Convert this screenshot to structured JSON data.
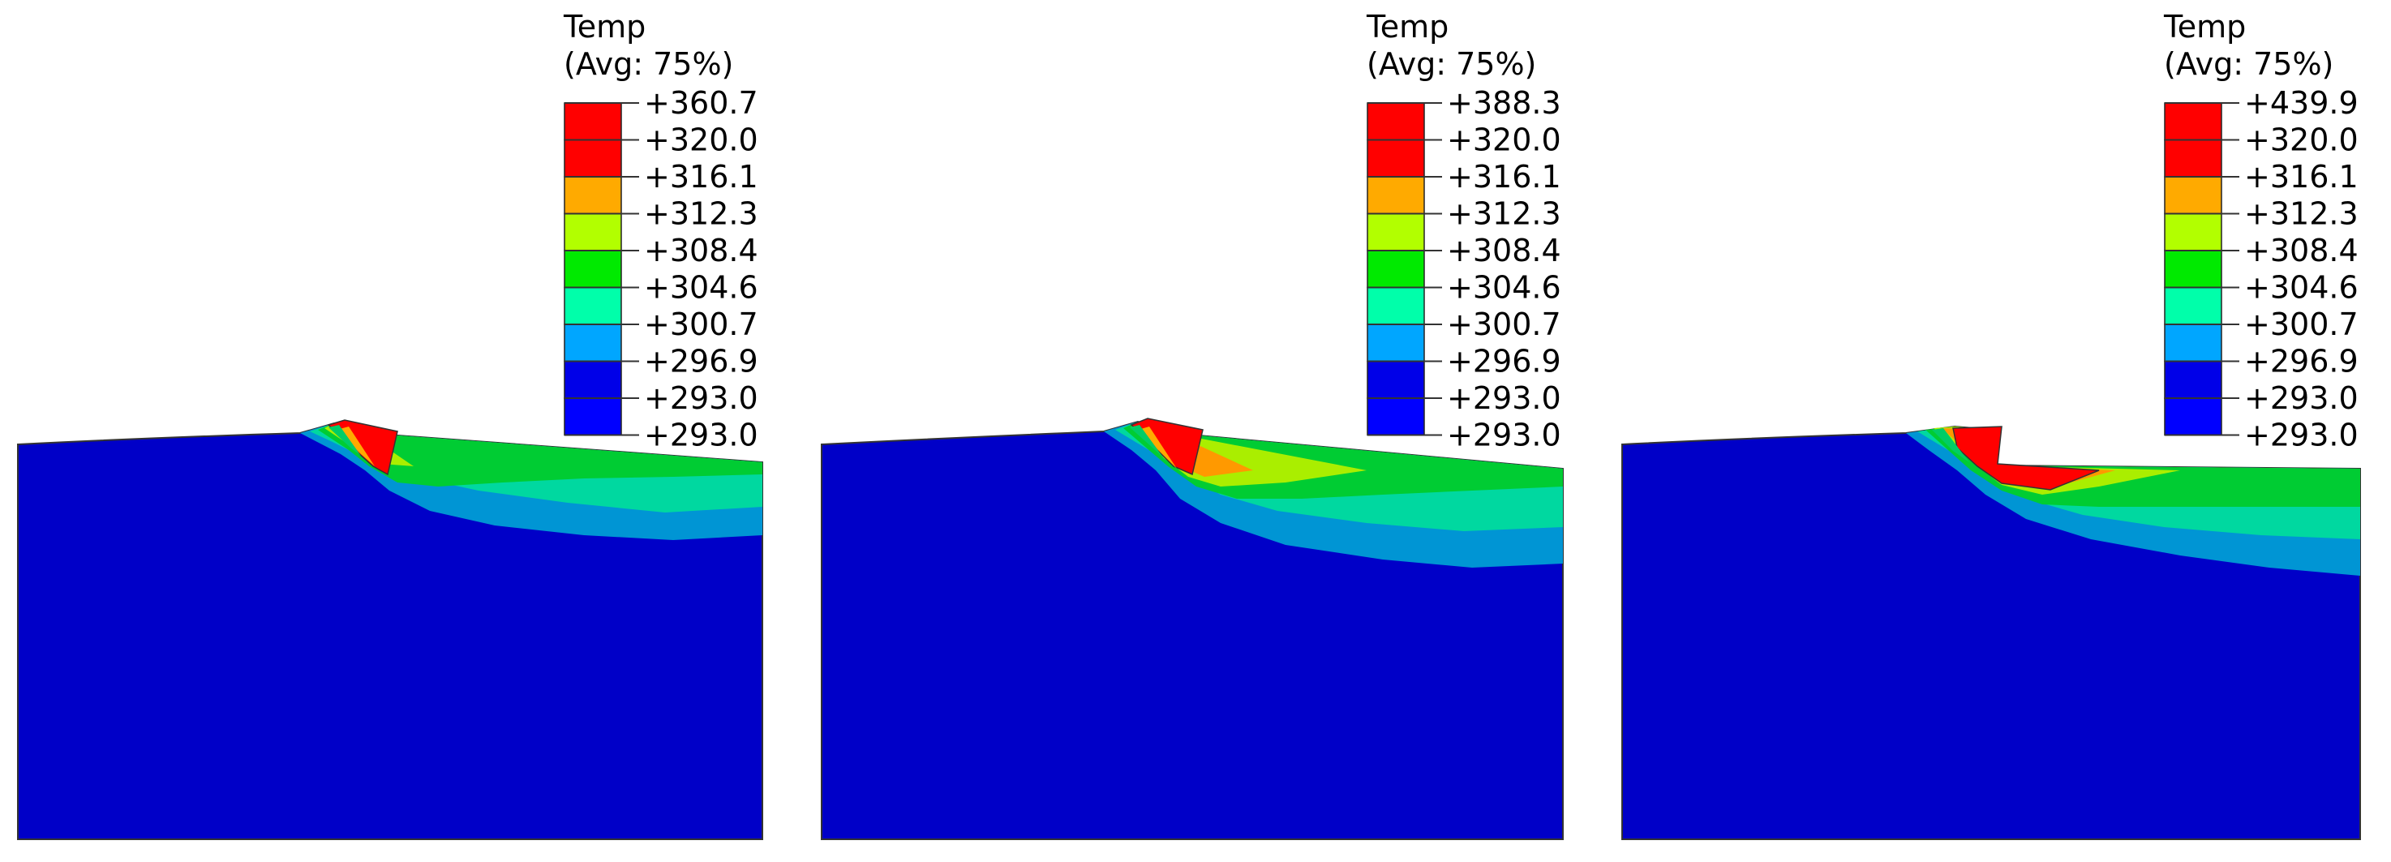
{
  "chart_data": [
    {
      "type": "heatmap",
      "legend": {
        "title": "Temp",
        "subtitle": "(Avg: 75%)",
        "labels": [
          "+360.7",
          "+320.0",
          "+316.1",
          "+312.3",
          "+308.4",
          "+304.6",
          "+300.7",
          "+296.9",
          "+293.0",
          "+293.0"
        ],
        "values": [
          360.7,
          320.0,
          316.1,
          312.3,
          308.4,
          304.6,
          300.7,
          296.9,
          293.0,
          293.0
        ],
        "colors": [
          "#ff0000",
          "#ff0000",
          "#ffaa00",
          "#b2ff00",
          "#00ea00",
          "#00ffaa",
          "#00a6ff",
          "#0000e8",
          "#0000ff"
        ]
      },
      "maximum": 360.7,
      "minimum": 293.0
    },
    {
      "type": "heatmap",
      "legend": {
        "title": "Temp",
        "subtitle": "(Avg: 75%)",
        "labels": [
          "+388.3",
          "+320.0",
          "+316.1",
          "+312.3",
          "+308.4",
          "+304.6",
          "+300.7",
          "+296.9",
          "+293.0",
          "+293.0"
        ],
        "values": [
          388.3,
          320.0,
          316.1,
          312.3,
          308.4,
          304.6,
          300.7,
          296.9,
          293.0,
          293.0
        ],
        "colors": [
          "#ff0000",
          "#ff0000",
          "#ffaa00",
          "#b2ff00",
          "#00ea00",
          "#00ffaa",
          "#00a6ff",
          "#0000e8",
          "#0000ff"
        ]
      },
      "maximum": 388.3,
      "minimum": 293.0
    },
    {
      "type": "heatmap",
      "legend": {
        "title": "Temp",
        "subtitle": "(Avg: 75%)",
        "labels": [
          "+439.9",
          "+320.0",
          "+316.1",
          "+312.3",
          "+308.4",
          "+304.6",
          "+300.7",
          "+296.9",
          "+293.0",
          "+293.0"
        ],
        "values": [
          439.9,
          320.0,
          316.1,
          312.3,
          308.4,
          304.6,
          300.7,
          296.9,
          293.0,
          293.0
        ],
        "colors": [
          "#ff0000",
          "#ff0000",
          "#ffaa00",
          "#b2ff00",
          "#00ea00",
          "#00ffaa",
          "#00a6ff",
          "#0000e8",
          "#0000ff"
        ]
      },
      "maximum": 439.9,
      "minimum": 293.0
    }
  ]
}
